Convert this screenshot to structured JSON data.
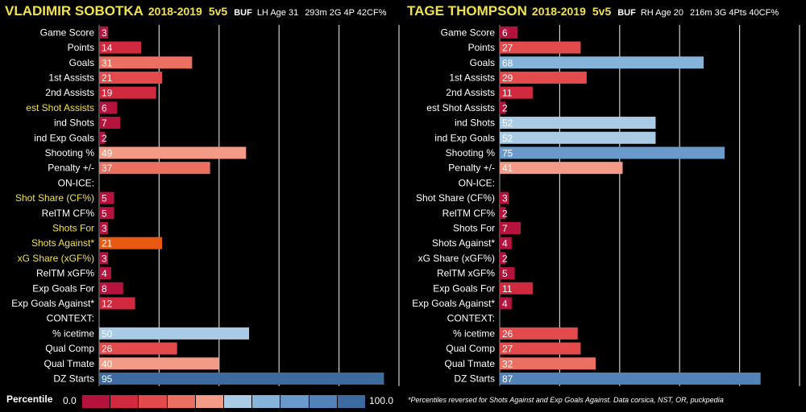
{
  "players": [
    {
      "name": "VLADIMIR SOBOTKA",
      "season": "2018-2019",
      "strength": "5v5",
      "team": "BUF",
      "hand_age": "LH Age 31",
      "stats": "293m 2G 4P 42CF%"
    },
    {
      "name": "TAGE THOMPSON",
      "season": "2018-2019",
      "strength": "5v5",
      "team": "BUF",
      "hand_age": "RH Age 20",
      "stats": "216m 3G 4Pts 40CF%"
    }
  ],
  "legend": {
    "title": "Percentile",
    "min_label": "0.0",
    "max_label": "100.0",
    "colors": [
      "#b5123e",
      "#d12a3f",
      "#e24a4c",
      "#ec7062",
      "#f39b86",
      "#a9cbe5",
      "#86b3d9",
      "#6a9acb",
      "#5283b8",
      "#3d6b9f"
    ]
  },
  "footnote": "*Percentiles reversed for Shots Against and Exp Goals Against. Data corsica, NST, OR, puckpedia",
  "chart_data": [
    {
      "type": "bar",
      "orientation": "horizontal",
      "xlim": [
        0,
        100
      ],
      "grid": true,
      "categories": [
        "Game Score",
        "Points",
        "Goals",
        "1st Assists",
        "2nd Assists",
        "est Shot Assists",
        "ind Shots",
        "ind Exp Goals",
        "Shooting %",
        "Penalty +/-",
        "ON-ICE:",
        "Shot Share (CF%)",
        "RelTM CF%",
        "Shots For",
        "Shots Against*",
        "xG Share (xGF%)",
        "RelTM xGF%",
        "Exp Goals For",
        "Exp Goals Against*",
        "CONTEXT:",
        "% icetime",
        "Qual Comp",
        "Qual Tmate",
        "DZ Starts"
      ],
      "values": [
        3,
        14,
        31,
        21,
        19,
        6,
        7,
        2,
        49,
        37,
        null,
        5,
        5,
        3,
        21,
        3,
        4,
        8,
        12,
        null,
        50,
        26,
        40,
        95
      ],
      "highlighted_categories": [
        "est Shot Assists",
        "Shot Share (CF%)",
        "Shots For",
        "Shots Against*",
        "xG Share (xGF%)"
      ],
      "highlight_color": "#f2e24a",
      "special_bar_colors": {
        "Shots Against*": "#e85a12"
      }
    },
    {
      "type": "bar",
      "orientation": "horizontal",
      "xlim": [
        0,
        100
      ],
      "grid": true,
      "categories": [
        "Game Score",
        "Points",
        "Goals",
        "1st Assists",
        "2nd Assists",
        "est Shot Assists",
        "ind Shots",
        "ind Exp Goals",
        "Shooting %",
        "Penalty +/-",
        "ON-ICE:",
        "Shot Share (CF%)",
        "RelTM CF%",
        "Shots For",
        "Shots Against*",
        "xG Share (xGF%)",
        "RelTM xGF%",
        "Exp Goals For",
        "Exp Goals Against*",
        "CONTEXT:",
        "% icetime",
        "Qual Comp",
        "Qual Tmate",
        "DZ Starts"
      ],
      "values": [
        6,
        27,
        68,
        29,
        11,
        2,
        52,
        52,
        75,
        41,
        null,
        3,
        2,
        7,
        4,
        2,
        5,
        11,
        4,
        null,
        26,
        27,
        32,
        87
      ],
      "highlighted_categories": [],
      "highlight_color": "#f2e24a",
      "special_bar_colors": {}
    }
  ]
}
